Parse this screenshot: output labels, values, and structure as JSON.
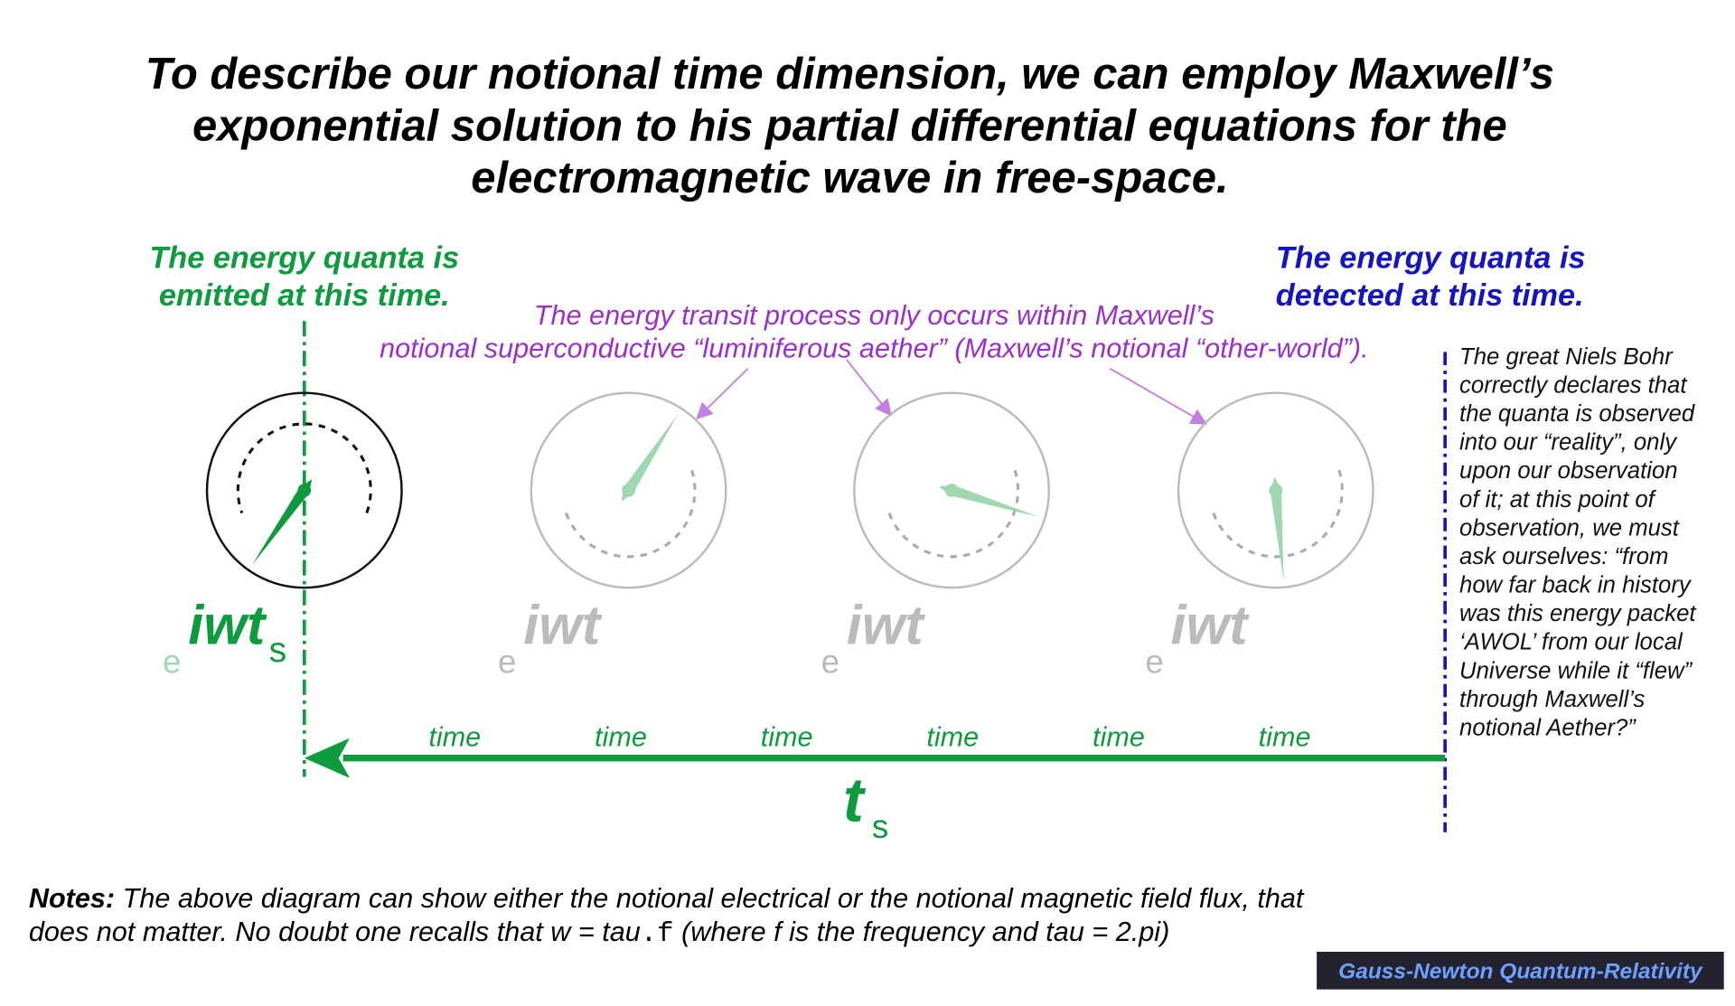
{
  "title": [
    "To describe our notional time dimension, we can employ Maxwell’s",
    "exponential solution to his partial differential equations for the",
    "electromagnetic wave in free-space."
  ],
  "emitted_label": [
    "The energy quanta is",
    "emitted at this time."
  ],
  "detected_label": [
    "The energy quanta is",
    "detected at this time."
  ],
  "aether_note": [
    "The energy transit  process only occurs within Maxwell’s",
    "notional superconductive “luminiferous aether” (Maxwell’s notional “other-world”)."
  ],
  "bohr_quote": [
    "The great Niels Bohr",
    "correctly declares that",
    "the quanta is observed",
    "into  our “reality”, only",
    "upon our observation",
    "of it; at this point of",
    "observation, we must",
    "ask ourselves: “from",
    "how far back in history",
    "was this energy packet",
    "‘AWOL’ from our local",
    "Universe while it “flew”",
    "through Maxwell’s",
    "notional Aether?”"
  ],
  "clocks": [
    {
      "base": "e",
      "exponent": "iwt",
      "subscript": "s"
    },
    {
      "base": "e",
      "exponent": "iwt"
    },
    {
      "base": "e",
      "exponent": "iwt"
    },
    {
      "base": "e",
      "exponent": "iwt"
    }
  ],
  "time_labels": [
    "time",
    "time",
    "time",
    "time",
    "time",
    "time"
  ],
  "arrow_label": {
    "symbol": "t",
    "subscript": "s"
  },
  "notes": {
    "heading": "Notes:",
    "line1": " The above diagram can show either the notional electrical or the notional magnetic field flux, that",
    "line2a": "does not matter. No doubt one recalls that w = tau",
    "line2b": ".f",
    "line2c": "  (where f is the frequency and tau = 2.pi)"
  },
  "footer": "Gauss-Newton Quantum-Relativity"
}
